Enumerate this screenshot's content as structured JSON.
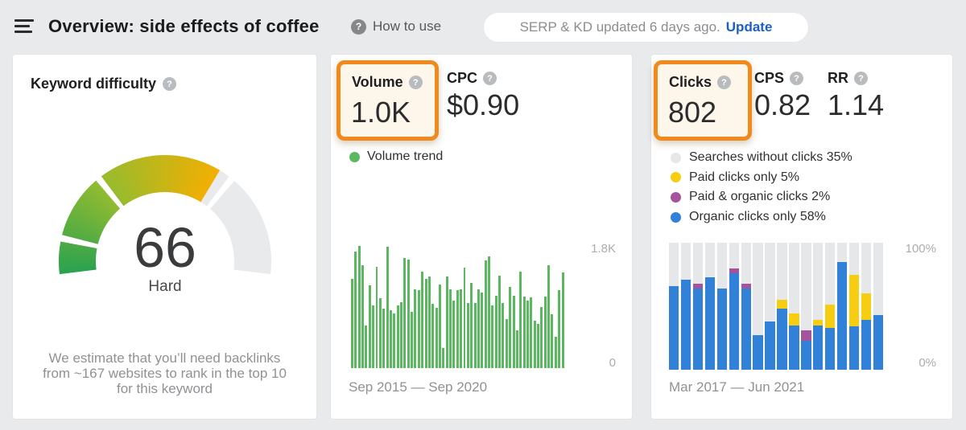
{
  "header": {
    "title": "Overview: side effects of coffee",
    "how_to_use": "How to use",
    "update_pill": {
      "text": "SERP & KD updated 6 days ago.",
      "action": "Update"
    }
  },
  "kd_card": {
    "title": "Keyword difficulty",
    "value": "66",
    "label": "Hard",
    "description": "We estimate that you’ll need backlinks from ~167 websites to rank in the top 10 for this keyword",
    "description_lines": [
      "We estimate that you’ll need backlinks",
      "from ~167 websites to rank in the top 10",
      "for this keyword"
    ]
  },
  "volume_card": {
    "volume_label": "Volume",
    "volume_value": "1.0K",
    "cpc_label": "CPC",
    "cpc_value": "$0.90",
    "legend": "Volume trend",
    "y_max_label": "1.8K",
    "y_min_label": "0",
    "chart_caption": "Sep 2015 — Sep 2020"
  },
  "clicks_card": {
    "clicks_label": "Clicks",
    "clicks_value": "802",
    "cps_label": "CPS",
    "cps_value": "0.82",
    "rr_label": "RR",
    "rr_value": "1.14",
    "legend": [
      {
        "label": "Searches without clicks 35%",
        "color_key": "no_click_gray"
      },
      {
        "label": "Paid clicks only 5%",
        "color_key": "paid_yellow"
      },
      {
        "label": "Paid & organic clicks 2%",
        "color_key": "paid_organic_purple"
      },
      {
        "label": "Organic clicks only 58%",
        "color_key": "organic_blue"
      }
    ],
    "y_max_label": "100%",
    "y_min_label": "0%",
    "chart_caption": "Mar 2017 — Jun 2021"
  },
  "colors": {
    "highlight_orange": "#f18a1d",
    "highlight_cream": "#fdf6ea",
    "update_blue": "#1a5fc8",
    "volume_green": "#5cb860",
    "organic_blue": "#3181d8",
    "paid_yellow": "#f6cd11",
    "paid_organic_purple": "#a4549c",
    "no_click_gray": "#e6e7e9",
    "gauge_rest_gray": "#e8eaec",
    "page_bg": "#e9eaec"
  },
  "chart_data": [
    {
      "type": "gauge",
      "title": "Keyword difficulty",
      "value": 66,
      "max": 100,
      "label": "Hard",
      "segment_boundaries": [
        10,
        30,
        70
      ],
      "color_stops": [
        [
          0,
          "#2ba24f"
        ],
        [
          30,
          "#95bc2f"
        ],
        [
          66,
          "#f2af02"
        ]
      ],
      "rest_color": "#e8eaec"
    },
    {
      "type": "bar",
      "title": "Volume trend",
      "x_start": "Sep 2015",
      "x_end": "Sep 2020",
      "ylim": [
        0,
        1800
      ],
      "y_tick_labels": [
        "0",
        "1.8K"
      ],
      "bar_color_key": "volume_green",
      "values": [
        1280,
        1670,
        1750,
        1480,
        610,
        1190,
        900,
        1450,
        1000,
        850,
        1740,
        830,
        790,
        900,
        950,
        1580,
        1560,
        810,
        1130,
        1120,
        1390,
        1280,
        1310,
        920,
        860,
        1200,
        290,
        1310,
        1130,
        970,
        1120,
        1130,
        1440,
        940,
        1220,
        940,
        1130,
        1080,
        1550,
        1600,
        900,
        1040,
        1330,
        940,
        700,
        1170,
        1040,
        540,
        1390,
        1030,
        970,
        1010,
        680,
        630,
        880,
        1030,
        1480,
        770,
        450,
        1120,
        1370
      ]
    },
    {
      "type": "stacked-bar",
      "title": "Clicks breakdown",
      "x_start": "Mar 2017",
      "x_end": "Jun 2021",
      "ylim": [
        0,
        100
      ],
      "unit": "%",
      "background_series": {
        "name": "Searches without clicks",
        "color_key": "no_click_gray"
      },
      "series": [
        {
          "name": "Organic clicks only",
          "color_key": "organic_blue",
          "values": [
            66,
            71,
            64,
            73,
            64,
            76,
            64,
            27,
            38,
            48,
            35,
            23,
            35,
            33,
            85,
            34,
            39,
            43
          ]
        },
        {
          "name": "Paid & organic clicks",
          "color_key": "paid_organic_purple",
          "values": [
            0,
            0,
            4,
            0,
            0,
            4,
            4,
            0,
            0,
            0,
            0,
            8,
            0,
            0,
            0,
            0,
            0,
            0
          ]
        },
        {
          "name": "Paid clicks only",
          "color_key": "paid_yellow",
          "values": [
            0,
            0,
            0,
            0,
            0,
            0,
            0,
            0,
            0,
            7,
            9,
            0,
            4,
            18,
            0,
            41,
            21,
            0
          ]
        }
      ]
    }
  ]
}
